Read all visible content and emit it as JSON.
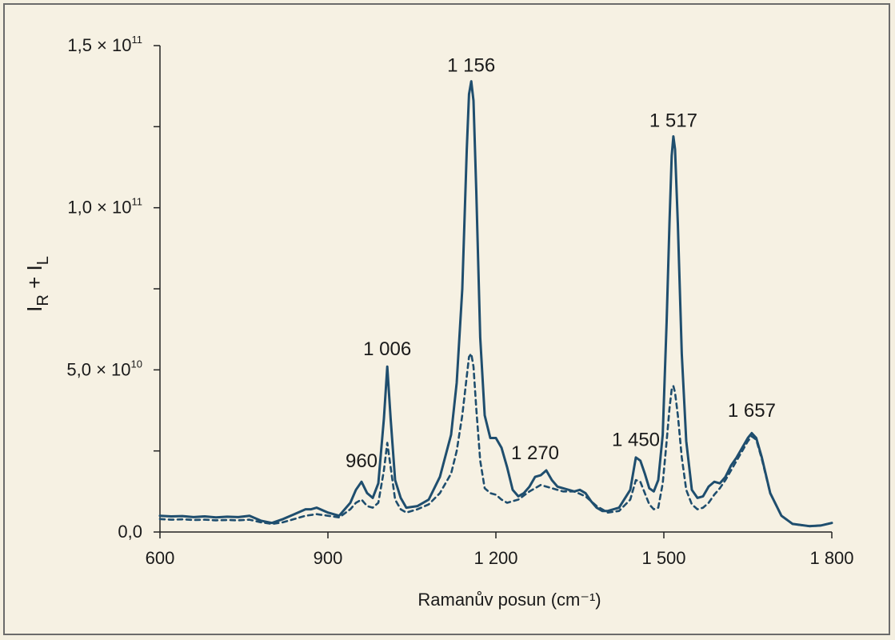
{
  "chart_data": {
    "type": "line",
    "xlabel": "Ramanův posun (cm⁻¹)",
    "ylabel": {
      "base": "I",
      "sub1": "R",
      "plus": " + ",
      "base2": "I",
      "sub2": "L"
    },
    "xlim": [
      600,
      1800
    ],
    "ylim": [
      0,
      150000000000.0
    ],
    "x_ticks": [
      {
        "value": 600,
        "label": "600"
      },
      {
        "value": 900,
        "label": "900"
      },
      {
        "value": 1200,
        "label": "1 200"
      },
      {
        "value": 1500,
        "label": "1 500"
      },
      {
        "value": 1800,
        "label": "1 800"
      }
    ],
    "y_ticks": [
      {
        "value": 0,
        "label": "0,0",
        "exp": ""
      },
      {
        "value": 50000000000.0,
        "label": "5,0 × 10",
        "exp": "10"
      },
      {
        "value": 100000000000.0,
        "label": "1,0 × 10",
        "exp": "11"
      },
      {
        "value": 150000000000.0,
        "label": "1,5 × 10",
        "exp": "11"
      }
    ],
    "peak_labels": [
      {
        "text": "960",
        "x": 960,
        "y": 20000000000.0
      },
      {
        "text": "1 006",
        "x": 1006,
        "y": 54500000000.0
      },
      {
        "text": "1 156",
        "x": 1156,
        "y": 142000000000.0
      },
      {
        "text": "1 270",
        "x": 1270,
        "y": 22500000000.0
      },
      {
        "text": "1 450",
        "x": 1450,
        "y": 26500000000.0
      },
      {
        "text": "1 517",
        "x": 1517,
        "y": 125000000000.0
      },
      {
        "text": "1 657",
        "x": 1657,
        "y": 35500000000.0
      }
    ],
    "series": [
      {
        "style": "solid",
        "color": "#1f4e6e",
        "x": [
          600,
          620,
          640,
          660,
          680,
          700,
          720,
          740,
          760,
          780,
          800,
          820,
          840,
          860,
          870,
          880,
          900,
          920,
          940,
          950,
          960,
          970,
          980,
          990,
          1000,
          1006,
          1012,
          1020,
          1030,
          1040,
          1060,
          1080,
          1100,
          1120,
          1130,
          1140,
          1148,
          1152,
          1156,
          1160,
          1165,
          1172,
          1180,
          1190,
          1200,
          1210,
          1220,
          1230,
          1240,
          1250,
          1260,
          1270,
          1280,
          1290,
          1300,
          1310,
          1320,
          1330,
          1340,
          1350,
          1360,
          1370,
          1380,
          1390,
          1400,
          1420,
          1440,
          1450,
          1458,
          1466,
          1474,
          1482,
          1490,
          1498,
          1505,
          1510,
          1514,
          1517,
          1520,
          1525,
          1532,
          1540,
          1550,
          1560,
          1570,
          1580,
          1590,
          1600,
          1610,
          1620,
          1630,
          1640,
          1650,
          1657,
          1665,
          1675,
          1690,
          1710,
          1730,
          1760,
          1780,
          1800
        ],
        "y": [
          5000000000.0,
          4800000000.0,
          4900000000.0,
          4600000000.0,
          4800000000.0,
          4500000000.0,
          4700000000.0,
          4600000000.0,
          5000000000.0,
          3500000000.0,
          2800000000.0,
          4000000000.0,
          5500000000.0,
          7000000000.0,
          7000000000.0,
          7500000000.0,
          6000000000.0,
          5000000000.0,
          9000000000.0,
          13000000000.0,
          15500000000.0,
          12000000000.0,
          10500000000.0,
          15000000000.0,
          35000000000.0,
          51000000000.0,
          35000000000.0,
          16000000000.0,
          10500000000.0,
          7500000000.0,
          8000000000.0,
          10000000000.0,
          17000000000.0,
          30000000000.0,
          46000000000.0,
          75000000000.0,
          118000000000.0,
          135000000000.0,
          139000000000.0,
          133000000000.0,
          105000000000.0,
          60000000000.0,
          36000000000.0,
          29000000000.0,
          29000000000.0,
          26000000000.0,
          20000000000.0,
          13000000000.0,
          11000000000.0,
          12000000000.0,
          14000000000.0,
          17000000000.0,
          17500000000.0,
          19000000000.0,
          16000000000.0,
          14000000000.0,
          13500000000.0,
          13000000000.0,
          12500000000.0,
          13000000000.0,
          12000000000.0,
          9500000000.0,
          7500000000.0,
          6500000000.0,
          6500000000.0,
          7500000000.0,
          13000000000.0,
          23000000000.0,
          22000000000.0,
          18000000000.0,
          13500000000.0,
          12500000000.0,
          16000000000.0,
          30000000000.0,
          65000000000.0,
          95000000000.0,
          116000000000.0,
          122000000000.0,
          118000000000.0,
          95000000000.0,
          55000000000.0,
          28000000000.0,
          13000000000.0,
          10500000000.0,
          11000000000.0,
          14000000000.0,
          15500000000.0,
          15000000000.0,
          17000000000.0,
          20500000000.0,
          23000000000.0,
          26000000000.0,
          29000000000.0,
          30500000000.0,
          29000000000.0,
          23000000000.0,
          12000000000.0,
          5000000000.0,
          2500000000.0,
          1800000000.0,
          2000000000.0,
          2800000000.0
        ]
      },
      {
        "style": "dashed",
        "color": "#1f4e6e",
        "x": [
          600,
          620,
          640,
          660,
          680,
          700,
          720,
          740,
          760,
          780,
          800,
          820,
          840,
          860,
          880,
          900,
          920,
          940,
          950,
          960,
          970,
          980,
          990,
          1000,
          1006,
          1012,
          1020,
          1030,
          1040,
          1060,
          1080,
          1100,
          1120,
          1130,
          1140,
          1148,
          1152,
          1156,
          1160,
          1165,
          1172,
          1180,
          1190,
          1200,
          1210,
          1220,
          1240,
          1260,
          1280,
          1300,
          1320,
          1340,
          1360,
          1380,
          1400,
          1420,
          1440,
          1450,
          1458,
          1466,
          1474,
          1482,
          1490,
          1498,
          1505,
          1510,
          1514,
          1517,
          1520,
          1525,
          1532,
          1540,
          1550,
          1560,
          1570,
          1580,
          1590,
          1600,
          1610,
          1620,
          1630,
          1640,
          1650,
          1657,
          1665,
          1675,
          1690,
          1710,
          1730,
          1760,
          1780,
          1800
        ],
        "y": [
          4000000000.0,
          3800000000.0,
          3900000000.0,
          3700000000.0,
          3800000000.0,
          3600000000.0,
          3700000000.0,
          3600000000.0,
          3800000000.0,
          3000000000.0,
          2500000000.0,
          3000000000.0,
          4000000000.0,
          5000000000.0,
          5500000000.0,
          5000000000.0,
          4500000000.0,
          7000000000.0,
          9000000000.0,
          10000000000.0,
          8000000000.0,
          7500000000.0,
          9000000000.0,
          19000000000.0,
          27500000000.0,
          20000000000.0,
          10000000000.0,
          7000000000.0,
          6000000000.0,
          7000000000.0,
          8500000000.0,
          12000000000.0,
          18000000000.0,
          25000000000.0,
          36000000000.0,
          48000000000.0,
          54000000000.0,
          55000000000.0,
          51000000000.0,
          38000000000.0,
          22000000000.0,
          13500000000.0,
          12000000000.0,
          11500000000.0,
          10000000000.0,
          9000000000.0,
          10000000000.0,
          12500000000.0,
          14500000000.0,
          13500000000.0,
          12500000000.0,
          12500000000.0,
          11000000000.0,
          8000000000.0,
          6000000000.0,
          6500000000.0,
          10000000000.0,
          16000000000.0,
          15500000000.0,
          12000000000.0,
          8500000000.0,
          7000000000.0,
          7500000000.0,
          15000000000.0,
          28000000000.0,
          38000000000.0,
          44000000000.0,
          45000000000.0,
          43000000000.0,
          36000000000.0,
          23000000000.0,
          13000000000.0,
          8500000000.0,
          7000000000.0,
          7500000000.0,
          9000000000.0,
          11500000000.0,
          13500000000.0,
          16000000000.0,
          19000000000.0,
          22000000000.0,
          25000000000.0,
          28000000000.0,
          29500000000.0,
          28500000000.0,
          22500000000.0,
          12000000000.0,
          5000000000.0,
          2500000000.0,
          1800000000.0,
          2000000000.0,
          2800000000.0
        ]
      }
    ]
  }
}
